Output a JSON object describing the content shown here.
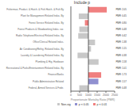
{
  "chart_data": {
    "type": "bar",
    "orientation": "horizontal",
    "title": "Include p",
    "xlabel": "Proportionate Mortality Ratio (PMR)",
    "categories": [
      "Fisherman, Product. & Hatch. & Fish Hatch. & Fish By",
      "Plant for Management Related Indus. By",
      "Forest Service Related Indus. By",
      "Forest Products & Woodworking Indus. var.",
      "Radio Telephone/Electrical Related Indus. By",
      "Office/Clerical Related Indus.",
      "Air Conditioning/Refrig. Related Indus. By",
      "Laundry & Laundering Related Indus. By",
      "Plumbing & Htg. Hardware",
      "Recreational & Parks/Entertainment Related Indus. By",
      "Finance/Banks",
      "Public Administration Related",
      "Federal, Armed Services & Fede."
    ],
    "series": [
      {
        "name": "Non-sig",
        "color": "#c8c8c8",
        "values": [
          null,
          451,
          null,
          480,
          420,
          1380,
          1150,
          381,
          1580,
          1013,
          null,
          null,
          480
        ]
      },
      {
        "name": "p < 0.05",
        "color": "#9090d0",
        "values": [
          null,
          null,
          null,
          null,
          null,
          null,
          null,
          null,
          null,
          null,
          null,
          1570,
          null
        ]
      },
      {
        "name": "p < 0.01",
        "color": "#f08080",
        "values": [
          2050,
          null,
          800,
          null,
          null,
          null,
          null,
          null,
          null,
          null,
          1730,
          null,
          null
        ]
      }
    ],
    "annotations": [
      "PMR: 2.05",
      "PMR: 0.45",
      "PMR: 0.80",
      "PMR: 0.48",
      "PMR: 0.42",
      "PMR: 1.38",
      "PMR: 1.15",
      "PMR: 0.38",
      "PMR: 1.58",
      "PMR: 1.01",
      "PMR: 1.73",
      "PMR: 1.57",
      "PMR: 0.48"
    ],
    "baseline": 1000,
    "xlim": [
      0,
      2500
    ],
    "xticks": [
      0,
      500,
      1000,
      1500,
      2000,
      2500
    ],
    "grid": false
  }
}
